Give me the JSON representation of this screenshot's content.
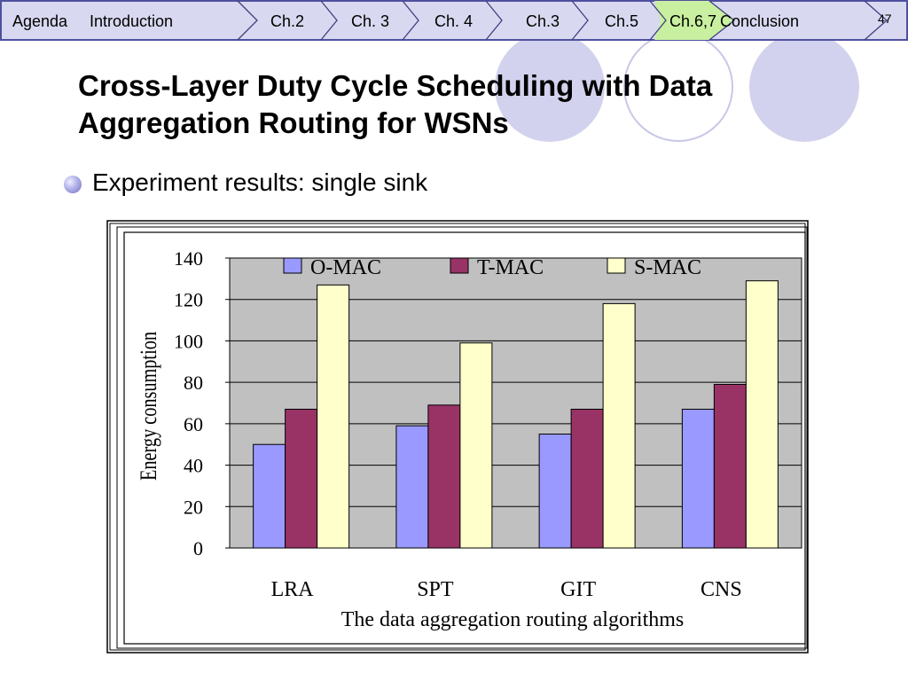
{
  "nav": {
    "items": [
      "Agenda",
      "Introduction",
      "Ch.2",
      "Ch. 3",
      "Ch. 4",
      "Ch.3",
      "Ch.5",
      "Ch.6,7",
      "Conclusion"
    ],
    "active": "Ch.6,7",
    "page_number": "47",
    "colors": {
      "bar_bg": "#d8d8f0",
      "bar_border": "#5050a0",
      "active_bg": "#c8f0a0"
    }
  },
  "slide": {
    "title_line1": "Cross-Layer Duty Cycle Scheduling with Data",
    "title_line2": "Aggregation Routing for WSNs",
    "bullet": "Experiment results: single sink"
  },
  "chart_data": {
    "type": "bar",
    "categories": [
      "LRA",
      "SPT",
      "GIT",
      "CNS"
    ],
    "series": [
      {
        "name": "O-MAC",
        "values": [
          50,
          59,
          55,
          67
        ],
        "color": "#9999ff"
      },
      {
        "name": "T-MAC",
        "values": [
          67,
          69,
          67,
          79
        ],
        "color": "#993366"
      },
      {
        "name": "S-MAC",
        "values": [
          127,
          99,
          118,
          129
        ],
        "color": "#ffffcc"
      }
    ],
    "title": "",
    "xlabel": "The data aggregation routing algorithms",
    "ylabel": "Energy consumption",
    "ylim": [
      0,
      140
    ],
    "yticks": [
      0,
      20,
      40,
      60,
      80,
      100,
      120,
      140
    ],
    "grid": true,
    "legend": "top",
    "plot_bg": "#c0c0c0"
  }
}
